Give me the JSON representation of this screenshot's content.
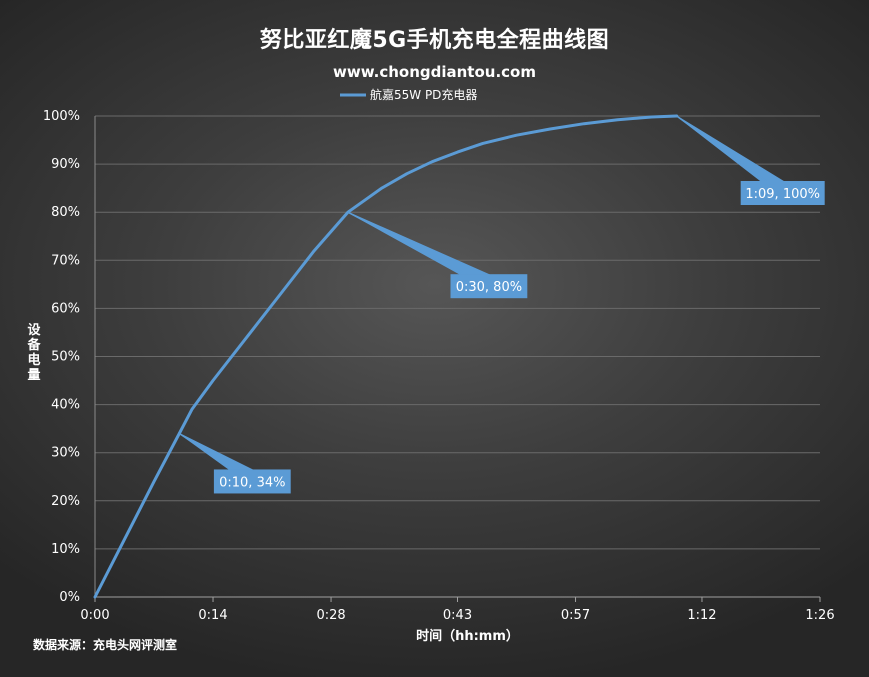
{
  "chart_data": {
    "type": "line",
    "title": "努比亚红魔5G手机充电全程曲线图",
    "subtitle": "www.chongdiantou.com",
    "xlabel": "时间（hh:mm）",
    "ylabel": "设备电量",
    "source": "数据来源：充电头网评测室",
    "xlim": [
      0,
      86
    ],
    "ylim": [
      0,
      100
    ],
    "x_ticks": [
      0,
      14,
      28,
      43,
      57,
      72,
      86
    ],
    "x_tick_labels": [
      "0:00",
      "0:14",
      "0:28",
      "0:43",
      "0:57",
      "1:12",
      "1:26"
    ],
    "y_ticks": [
      0,
      10,
      20,
      30,
      40,
      50,
      60,
      70,
      80,
      90,
      100
    ],
    "y_tick_labels": [
      "0%",
      "10%",
      "20%",
      "30%",
      "40%",
      "50%",
      "60%",
      "70%",
      "80%",
      "90%",
      "100%"
    ],
    "grid": true,
    "legend_position": "top",
    "series": [
      {
        "name": "航嘉55W PD充电器",
        "color": "#5b9bd5",
        "x": [
          0,
          3.5,
          7,
          10,
          11.5,
          14,
          18,
          22,
          26,
          30,
          32,
          34,
          37,
          40,
          43,
          46,
          50,
          54,
          58,
          62,
          66,
          69
        ],
        "y": [
          0,
          12,
          24,
          34,
          39,
          45,
          54,
          63,
          72,
          80,
          82.5,
          85,
          88,
          90.5,
          92.5,
          94.3,
          96,
          97.3,
          98.4,
          99.2,
          99.8,
          100
        ]
      }
    ],
    "annotations": [
      {
        "x": 10,
        "y": 34,
        "label": "0:10, 34%"
      },
      {
        "x": 30,
        "y": 80,
        "label": "0:30, 80%"
      },
      {
        "x": 69,
        "y": 100,
        "label": "1:09, 100%"
      }
    ]
  }
}
